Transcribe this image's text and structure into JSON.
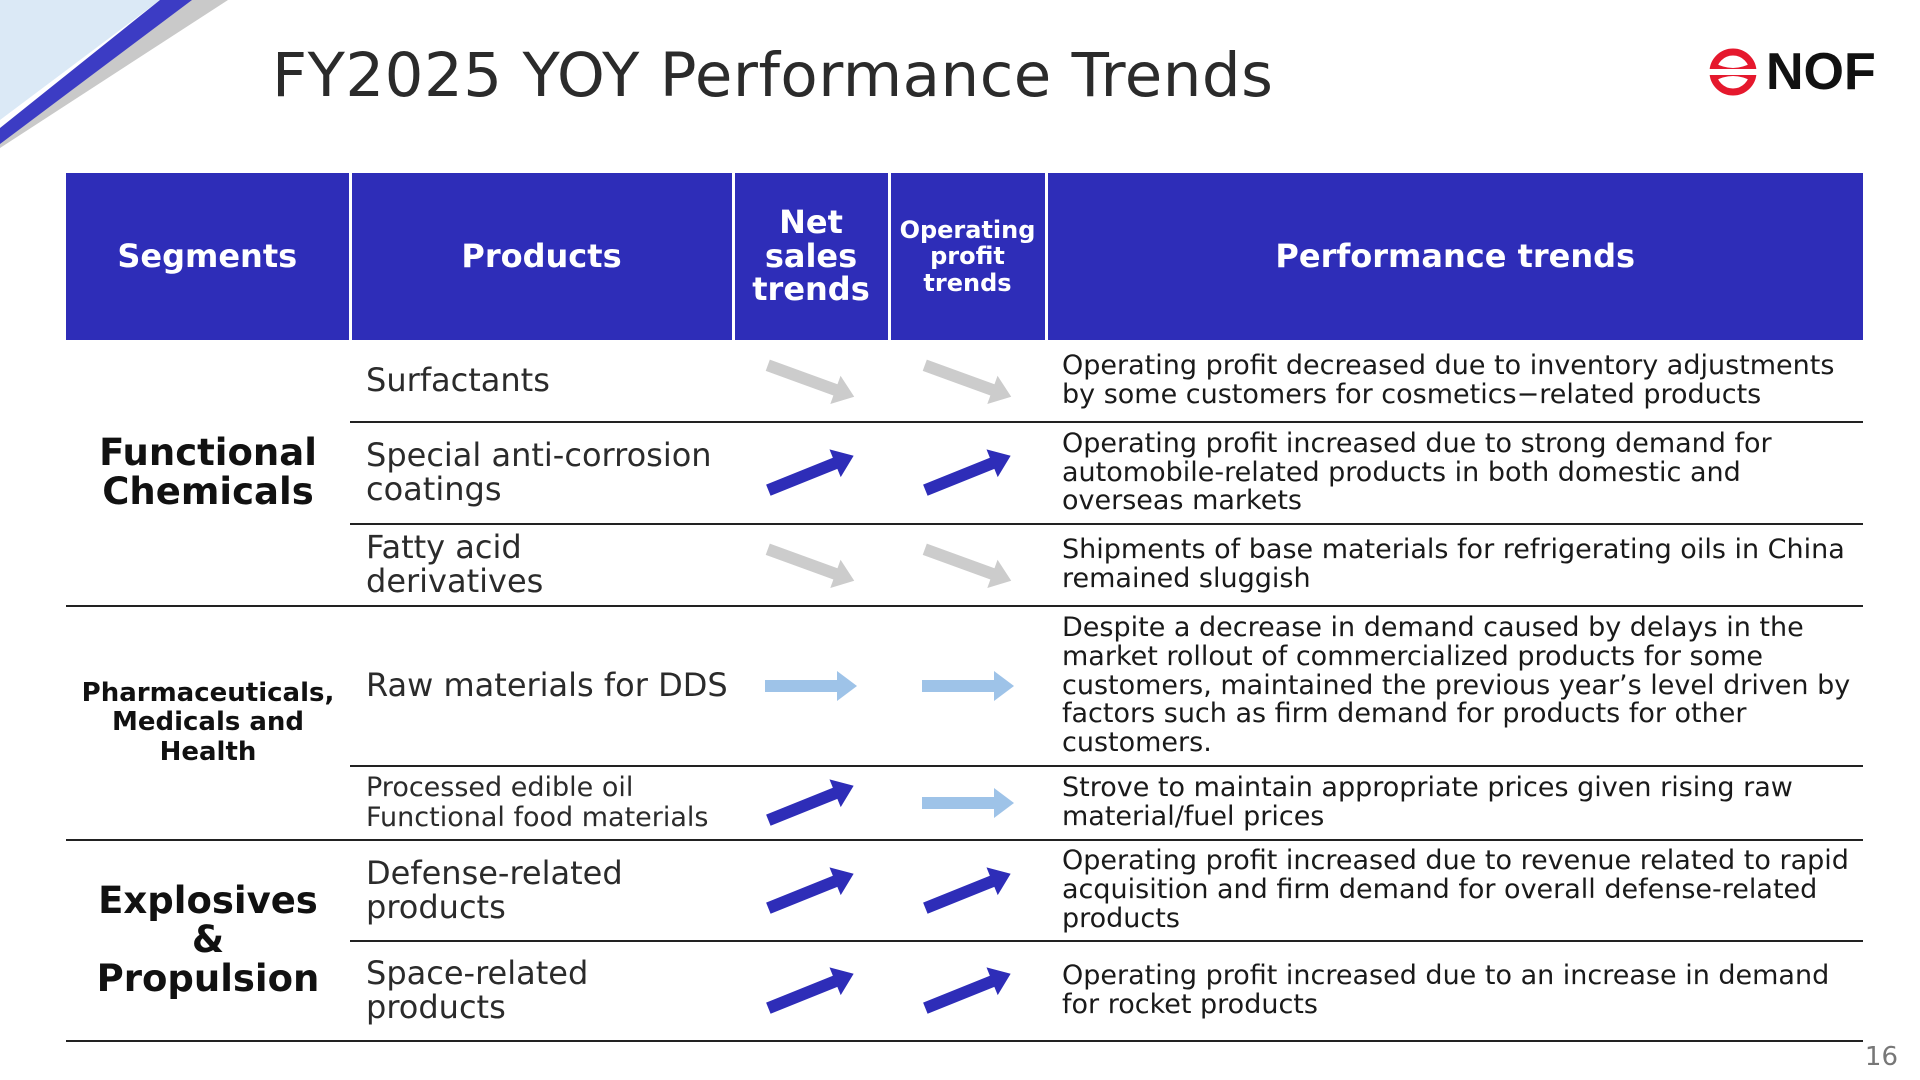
{
  "title": "FY2025 YOY Performance Trends",
  "logo": {
    "text": "NOF",
    "color": "#e5182d"
  },
  "page_number": "16",
  "colors": {
    "header_bg": "#2e2db8",
    "arrow_up": "#2e2db8",
    "arrow_flat": "#9ec3e8",
    "arrow_down": "#cccccc"
  },
  "table": {
    "headers": {
      "segments": "Segments",
      "products": "Products",
      "net_sales": "Net\nsales\ntrends",
      "operating_profit": "Operating\nprofit\ntrends",
      "performance": "Performance trends"
    },
    "segments": {
      "functional": "Functional\nChemicals",
      "pharma": "Pharmaceuticals,\nMedicals and\nHealth",
      "explosives": "Explosives\n&\nPropulsion"
    },
    "rows": [
      {
        "product": "Surfactants",
        "net_sales": "down-arrow",
        "operating_profit": "down-arrow",
        "performance": "Operating profit decreased due to inventory adjustments\nby some customers for cosmetics−related products"
      },
      {
        "product": "Special anti-corrosion\ncoatings",
        "net_sales": "up-arrow",
        "operating_profit": "up-arrow",
        "performance": "Operating profit increased due to strong demand for\nautomobile-related products in both domestic and\noverseas markets"
      },
      {
        "product": "Fatty acid\nderivatives",
        "net_sales": "down-arrow",
        "operating_profit": "down-arrow",
        "performance": "Shipments of base materials for refrigerating oils in China\nremained sluggish"
      },
      {
        "product": "Raw materials for DDS",
        "net_sales": "flat-arrow",
        "operating_profit": "flat-arrow",
        "performance": "Despite a decrease in demand caused by delays in the\nmarket rollout of commercialized products for some\ncustomers, maintained the previous year’s level driven by\nfactors such as firm demand for products for other\ncustomers."
      },
      {
        "product": "Processed edible oil\nFunctional food materials",
        "net_sales": "up-arrow",
        "operating_profit": "flat-arrow",
        "performance": "Strove to maintain appropriate prices given rising raw\nmaterial/fuel prices"
      },
      {
        "product": "Defense-related\nproducts",
        "net_sales": "up-arrow",
        "operating_profit": "up-arrow",
        "performance": "Operating profit increased due to revenue related to rapid\nacquisition and firm demand for overall defense-related\nproducts"
      },
      {
        "product": "Space-related\nproducts",
        "net_sales": "up-arrow",
        "operating_profit": "up-arrow",
        "performance": "Operating profit increased due to an increase in demand\nfor rocket products"
      }
    ]
  }
}
